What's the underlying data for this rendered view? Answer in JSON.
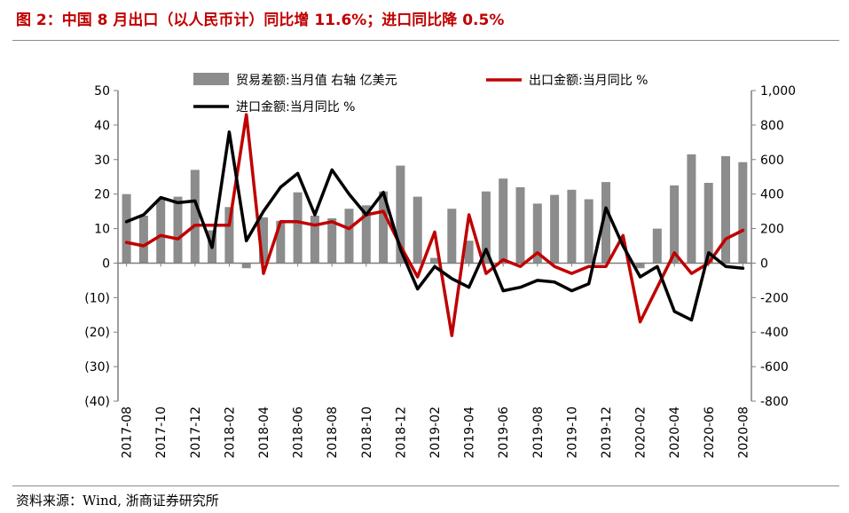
{
  "title": "图 2：中国 8 月出口（以人民币计）同比增 11.6%；进口同比降 0.5%",
  "source": "资料来源：Wind, 浙商证券研究所",
  "chart_data": {
    "type": "bar+line",
    "categories": [
      "2017-08",
      "2017-09",
      "2017-10",
      "2017-11",
      "2017-12",
      "2018-01",
      "2018-02",
      "2018-03",
      "2018-04",
      "2018-05",
      "2018-06",
      "2018-07",
      "2018-08",
      "2018-09",
      "2018-10",
      "2018-11",
      "2018-12",
      "2019-01",
      "2019-02",
      "2019-03",
      "2019-04",
      "2019-05",
      "2019-06",
      "2019-07",
      "2019-08",
      "2019-09",
      "2019-10",
      "2019-11",
      "2019-12",
      "2020-01",
      "2020-02",
      "2020-03",
      "2020-04",
      "2020-05",
      "2020-06",
      "2020-07",
      "2020-08"
    ],
    "x_tick_labels": [
      "2017-08",
      "2017-10",
      "2017-12",
      "2018-02",
      "2018-04",
      "2018-06",
      "2018-08",
      "2018-10",
      "2018-12",
      "2019-02",
      "2019-04",
      "2019-06",
      "2019-08",
      "2019-10",
      "2019-12",
      "2020-02",
      "2020-04",
      "2020-06",
      "2020-08"
    ],
    "left_axis": {
      "ylim": [
        -40,
        50
      ],
      "ticks": [
        50,
        40,
        30,
        20,
        10,
        0,
        -10,
        -20,
        -30,
        -40
      ],
      "tick_labels": [
        "50",
        "40",
        "30",
        "20",
        "10",
        "0",
        "(10)",
        "(20)",
        "(30)",
        "(40)"
      ]
    },
    "right_axis": {
      "ylim": [
        -800,
        1000
      ],
      "ticks": [
        1000,
        800,
        600,
        400,
        200,
        0,
        -200,
        -400,
        -600,
        -800
      ],
      "tick_labels": [
        "1,000",
        "800",
        "600",
        "400",
        "200",
        "0",
        "-200",
        "-400",
        "-600",
        "-800"
      ]
    },
    "series": [
      {
        "name": "贸易差额:当月值 右轴 亿美元",
        "type": "bar",
        "axis": "right",
        "color": "#8c8c8c",
        "values": [
          400,
          275,
          370,
          385,
          540,
          190,
          325,
          -30,
          265,
          245,
          410,
          275,
          260,
          315,
          335,
          415,
          565,
          385,
          30,
          315,
          130,
          415,
          490,
          440,
          345,
          395,
          425,
          370,
          470,
          0,
          -30,
          200,
          450,
          630,
          465,
          620,
          585
        ]
      },
      {
        "name": "出口金额:当月同比 %",
        "type": "line",
        "axis": "left",
        "color": "#c00000",
        "values": [
          6,
          5,
          8,
          7,
          11,
          11,
          11,
          43,
          -3,
          12,
          12,
          11,
          12,
          10,
          14,
          15,
          5,
          -4,
          9,
          -21,
          14,
          -3,
          1,
          -1,
          3,
          -1,
          -3,
          -1,
          -1,
          8,
          -17,
          -7,
          3,
          -3,
          0,
          7,
          9.5
        ]
      },
      {
        "name": "进口金额:当月同比 %",
        "type": "line",
        "axis": "left",
        "color": "#000000",
        "values": [
          12,
          14,
          19,
          17.5,
          18,
          4.5,
          38,
          6.5,
          15,
          22,
          26,
          14,
          27,
          20,
          14,
          20.5,
          4,
          -7.5,
          -1,
          -4.5,
          -7,
          4,
          -8,
          -7,
          -5,
          -5.5,
          -8,
          -6,
          16,
          5,
          -4,
          -1,
          -14,
          -16.5,
          3,
          -1,
          -1.5
        ]
      }
    ],
    "legend": [
      {
        "label": "贸易差额:当月值 右轴 亿美元",
        "kind": "bar",
        "color": "#8c8c8c"
      },
      {
        "label": "出口金额:当月同比 %",
        "kind": "line",
        "color": "#c00000"
      },
      {
        "label": "进口金额:当月同比 %",
        "kind": "line",
        "color": "#000000"
      }
    ],
    "legend_position": "top",
    "grid": false
  }
}
